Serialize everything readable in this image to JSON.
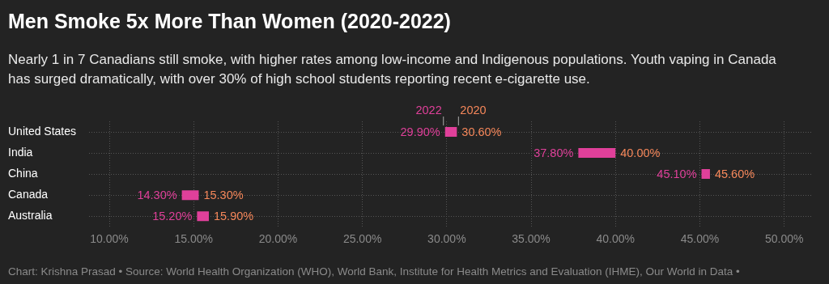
{
  "chart_data": {
    "type": "bar",
    "orientation": "horizontal",
    "title": "Men Smoke 5x More Than Women (2020-2022)",
    "subtitle": "Nearly 1 in 7 Canadians still smoke, with higher rates among low-income and Indigenous populations. Youth vaping in Canada has surged dramatically, with over 30% of high school students reporting recent e-cigarette use.",
    "categories": [
      "United States",
      "India",
      "China",
      "Canada",
      "Australia"
    ],
    "base": [
      29.9,
      37.8,
      45.1,
      14.3,
      15.2
    ],
    "values": [
      0.7,
      2.2,
      0.5,
      1.0,
      0.7
    ],
    "color": "#e0409a",
    "xlim": [
      8.8,
      51.6
    ],
    "xticks": [
      {
        "value": 10,
        "label": "10.00%"
      },
      {
        "value": 15,
        "label": "15.00%"
      },
      {
        "value": 20,
        "label": "20.00%"
      },
      {
        "value": 25,
        "label": "25.00%"
      },
      {
        "value": 30,
        "label": "30.00%"
      },
      {
        "value": 35,
        "label": "35.00%"
      },
      {
        "value": 40,
        "label": "40.00%"
      },
      {
        "value": 45,
        "label": "45.00%"
      },
      {
        "value": 50,
        "label": "50.00%"
      }
    ],
    "grid": true,
    "legend": false,
    "annotations": [
      {
        "text": "2022",
        "x": 29.9,
        "y": "United States"
      },
      {
        "text": "2020",
        "x": 30.6,
        "y": "United States"
      },
      {
        "text": "29.90%",
        "x": 29.9,
        "y": "United States"
      },
      {
        "text": "30.60%",
        "x": 30.6,
        "y": "United States"
      },
      {
        "text": "37.80%",
        "x": 37.8,
        "y": "India"
      },
      {
        "text": "40.00%",
        "x": 40.0,
        "y": "India"
      },
      {
        "text": "45.10%",
        "x": 45.1,
        "y": "China"
      },
      {
        "text": "45.60%",
        "x": 45.6,
        "y": "China"
      },
      {
        "text": "14.30%",
        "x": 14.3,
        "y": "Canada"
      },
      {
        "text": "15.30%",
        "x": 15.3,
        "y": "Canada"
      },
      {
        "text": "15.20%",
        "x": 15.2,
        "y": "Australia"
      },
      {
        "text": "15.90%",
        "x": 15.9,
        "y": "Australia"
      },
      "Chart: Krishna Prasad • Source: World Health Organization (WHO), World Bank, Institute for Health Metrics and Evaluation (IHME), Our World in Data •"
    ]
  }
}
